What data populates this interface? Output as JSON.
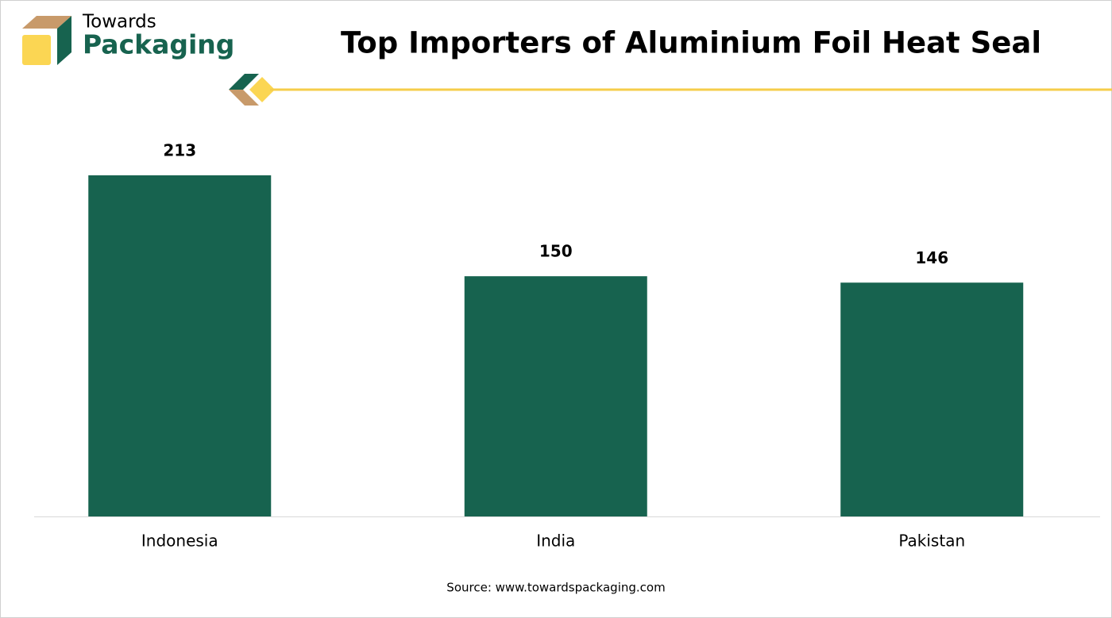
{
  "logo": {
    "line1": "Towards",
    "line2": "Packaging"
  },
  "chart_data": {
    "type": "bar",
    "title": "Top Importers of Aluminium Foil Heat Seal",
    "categories": [
      "Indonesia",
      "India",
      "Pakistan"
    ],
    "values": [
      213,
      150,
      146
    ],
    "color": "#17634f",
    "source": "Source: www.towardspackaging.com"
  }
}
